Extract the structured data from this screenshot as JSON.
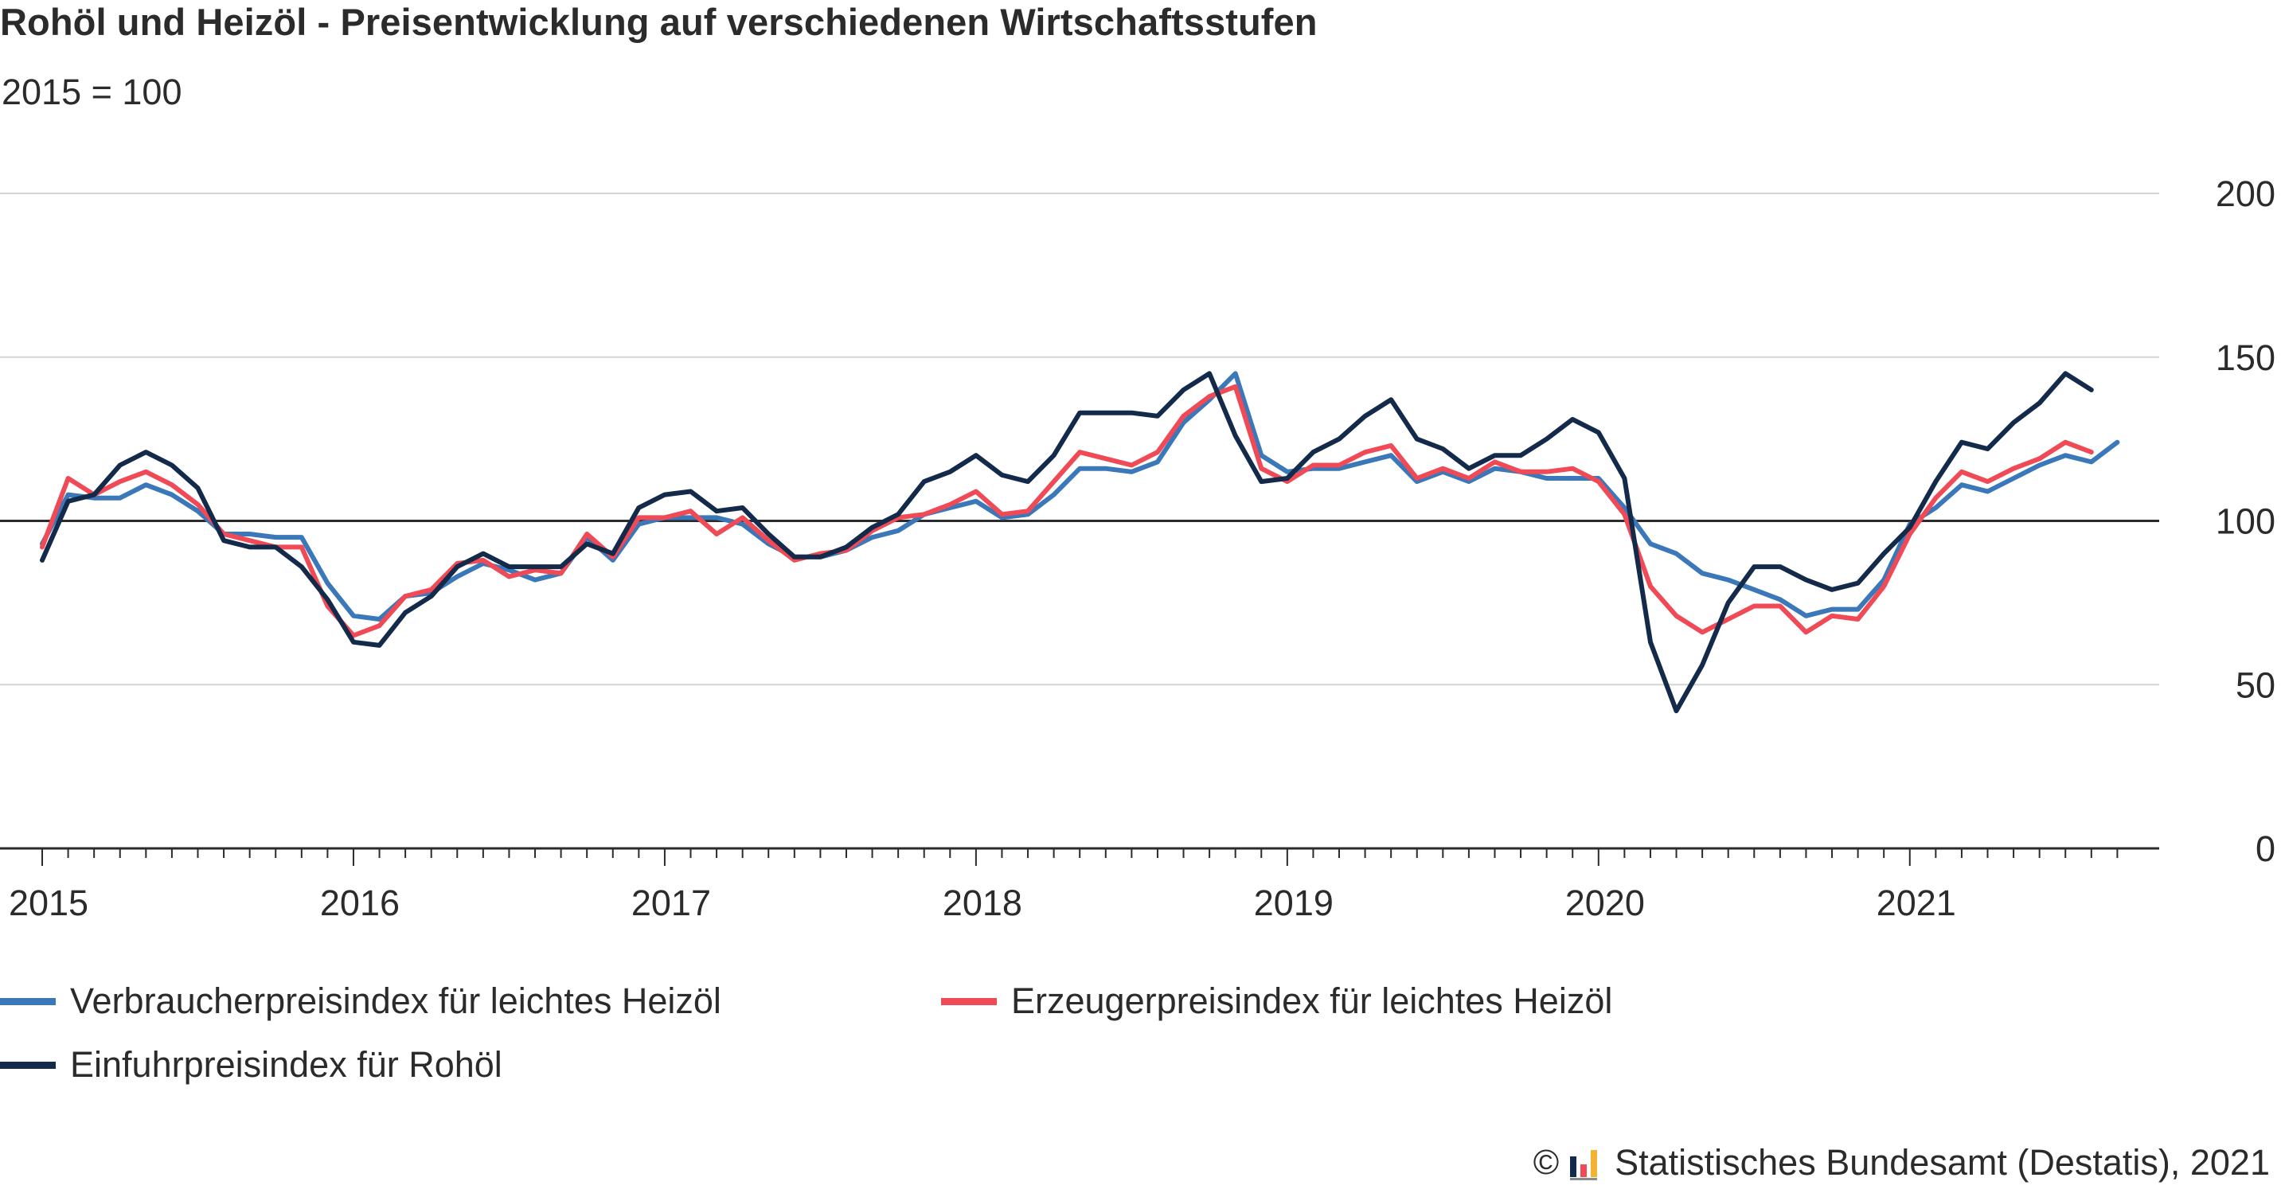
{
  "header": {
    "title": "Rohöl und Heizöl - Preisentwicklung auf verschiedenen Wirtschaftsstufen",
    "subtitle": "2015 = 100"
  },
  "source": {
    "copyright_symbol": "©",
    "logo_icon": "destatis-logo-icon",
    "text": "Statistisches Bundesamt (Destatis), 2021"
  },
  "chart_data": {
    "type": "line",
    "title": "Rohöl und Heizöl - Preisentwicklung auf verschiedenen Wirtschaftsstufen",
    "subtitle": "2015 = 100",
    "x_unit": "month",
    "x_start": "2015-01",
    "x_tick_labels": [
      "2015",
      "2016",
      "2017",
      "2018",
      "2019",
      "2020",
      "2021"
    ],
    "y_ticks": [
      0,
      50,
      100,
      150,
      200
    ],
    "ylim": [
      0,
      200
    ],
    "reference_line": 100,
    "grid": "horizontal",
    "legend_position": "bottom",
    "series": [
      {
        "name": "Verbraucherpreisindex für leichtes Heizöl",
        "color": "#3a78b9",
        "values": [
          93,
          108,
          107,
          107,
          111,
          108,
          103,
          96,
          96,
          95,
          95,
          81,
          71,
          70,
          77,
          78,
          83,
          87,
          85,
          82,
          84,
          95,
          88,
          99,
          101,
          101,
          101,
          99,
          93,
          89,
          89,
          91,
          95,
          97,
          102,
          104,
          106,
          101,
          102,
          108,
          116,
          116,
          115,
          118,
          130,
          137,
          145,
          120,
          115,
          116,
          116,
          118,
          120,
          112,
          115,
          112,
          116,
          115,
          113,
          113,
          113,
          104,
          93,
          90,
          84,
          82,
          79,
          76,
          71,
          73,
          73,
          82,
          99,
          104,
          111,
          109,
          113,
          117,
          120,
          118,
          124
        ]
      },
      {
        "name": "Erzeugerpreisindex für leichtes Heizöl",
        "color": "#f04a57",
        "values": [
          92,
          113,
          108,
          112,
          115,
          111,
          105,
          96,
          94,
          92,
          92,
          74,
          65,
          68,
          77,
          79,
          87,
          88,
          83,
          85,
          84,
          96,
          89,
          101,
          101,
          103,
          96,
          101,
          94,
          88,
          90,
          91,
          97,
          101,
          102,
          105,
          109,
          102,
          103,
          112,
          121,
          119,
          117,
          121,
          132,
          138,
          141,
          116,
          112,
          117,
          117,
          121,
          123,
          113,
          116,
          113,
          118,
          115,
          115,
          116,
          112,
          102,
          80,
          71,
          66,
          70,
          74,
          74,
          66,
          71,
          70,
          80,
          96,
          107,
          115,
          112,
          116,
          119,
          124,
          121
        ]
      },
      {
        "name": "Einfuhrpreisindex für Rohöl",
        "color": "#142a4a",
        "values": [
          88,
          106,
          108,
          117,
          121,
          117,
          110,
          94,
          92,
          92,
          86,
          76,
          63,
          62,
          72,
          77,
          86,
          90,
          86,
          86,
          86,
          93,
          90,
          104,
          108,
          109,
          103,
          104,
          96,
          89,
          89,
          92,
          98,
          102,
          112,
          115,
          120,
          114,
          112,
          120,
          133,
          133,
          133,
          132,
          140,
          145,
          126,
          112,
          113,
          121,
          125,
          132,
          137,
          125,
          122,
          116,
          120,
          120,
          125,
          131,
          127,
          113,
          63,
          42,
          56,
          75,
          86,
          86,
          82,
          79,
          81,
          90,
          98,
          112,
          124,
          122,
          130,
          136,
          145,
          140
        ]
      }
    ]
  }
}
